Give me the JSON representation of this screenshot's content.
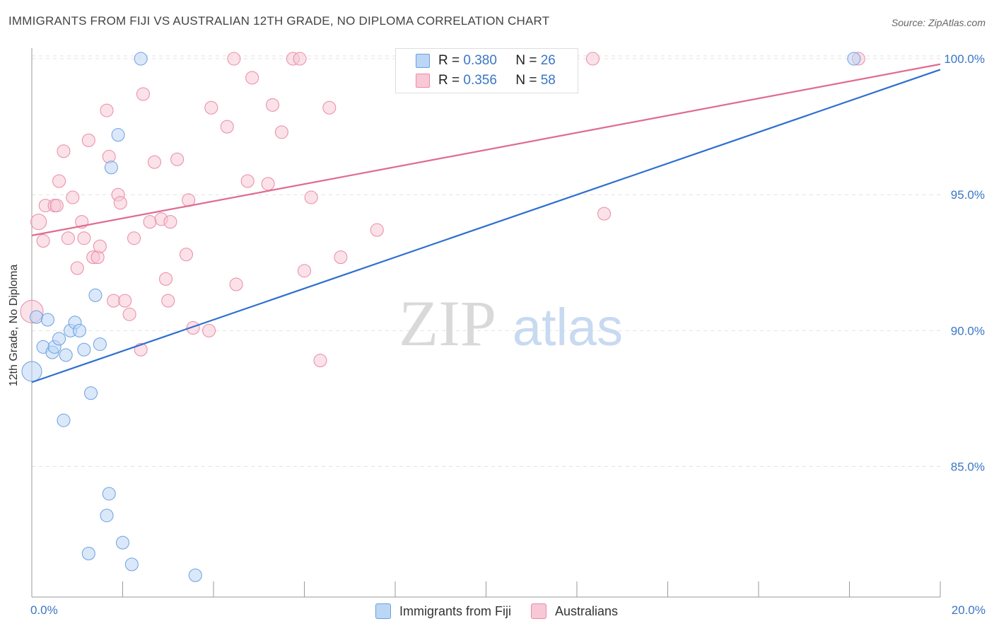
{
  "header": {
    "title": "IMMIGRANTS FROM FIJI VS AUSTRALIAN 12TH GRADE, NO DIPLOMA CORRELATION CHART",
    "source": "Source: ZipAtlas.com"
  },
  "watermark": {
    "zip": "ZIP",
    "atlas": "atlas"
  },
  "colors": {
    "fiji_fill": "#bcd6f5",
    "fiji_stroke": "#6aa0e0",
    "fiji_line": "#2e6fcf",
    "aus_fill": "#f8c8d6",
    "aus_stroke": "#e98aa6",
    "aus_line": "#e06a92",
    "tick_label": "#3a76c4",
    "grid": "#e2e2e2"
  },
  "legend_top": {
    "rows": [
      {
        "r_label": "R = ",
        "r_value": "0.380",
        "n_label": "N = ",
        "n_value": "26",
        "series": "fiji"
      },
      {
        "r_label": "R = ",
        "r_value": "0.356",
        "n_label": "N = ",
        "n_value": "58",
        "series": "aus"
      }
    ]
  },
  "legend_bottom": {
    "fiji": "Immigrants from Fiji",
    "aus": "Australians"
  },
  "chart_data": {
    "type": "scatter",
    "title": "IMMIGRANTS FROM FIJI VS AUSTRALIAN 12TH GRADE, NO DIPLOMA CORRELATION CHART",
    "xlabel": "",
    "ylabel": "12th Grade, No Diploma",
    "xlim": [
      0,
      20
    ],
    "ylim": [
      80.2,
      100.6
    ],
    "x_tick_labels": [
      "0.0%",
      "20.0%"
    ],
    "y_ticks": [
      85,
      90,
      95,
      100
    ],
    "y_tick_labels": [
      "85.0%",
      "90.0%",
      "95.0%",
      "100.0%"
    ],
    "grid": "horizontal dashed",
    "legend_placement": "bottom",
    "series": [
      {
        "name": "Immigrants from Fiji",
        "key": "fiji",
        "R": 0.38,
        "N": 26,
        "trend": {
          "x": [
            0,
            20
          ],
          "y": [
            88.1,
            99.6
          ]
        },
        "points": [
          [
            0.0,
            88.5,
            14
          ],
          [
            0.1,
            90.5,
            9
          ],
          [
            0.25,
            89.4,
            9
          ],
          [
            0.35,
            90.4,
            9
          ],
          [
            0.45,
            89.2,
            9
          ],
          [
            0.5,
            89.4,
            9
          ],
          [
            0.6,
            89.7,
            9
          ],
          [
            0.75,
            89.1,
            9
          ],
          [
            0.85,
            90.0,
            9
          ],
          [
            0.95,
            90.3,
            9
          ],
          [
            1.05,
            90.0,
            9
          ],
          [
            1.15,
            89.3,
            9
          ],
          [
            1.5,
            89.5,
            9
          ],
          [
            1.4,
            91.3,
            9
          ],
          [
            1.3,
            87.7,
            9
          ],
          [
            0.7,
            86.7,
            9
          ],
          [
            1.7,
            84.0,
            9
          ],
          [
            1.65,
            83.2,
            9
          ],
          [
            1.25,
            81.8,
            9
          ],
          [
            2.0,
            82.2,
            9
          ],
          [
            2.2,
            81.4,
            9
          ],
          [
            3.6,
            81.0,
            9
          ],
          [
            1.75,
            96.0,
            9
          ],
          [
            1.9,
            97.2,
            9
          ],
          [
            2.4,
            100.0,
            9
          ],
          [
            18.1,
            100.0,
            9
          ]
        ]
      },
      {
        "name": "Australians",
        "key": "aus",
        "R": 0.356,
        "N": 58,
        "trend": {
          "x": [
            0,
            20
          ],
          "y": [
            93.5,
            99.8
          ]
        },
        "points": [
          [
            0.0,
            90.7,
            16
          ],
          [
            0.15,
            94.0,
            11
          ],
          [
            0.25,
            93.3,
            9
          ],
          [
            0.3,
            94.6,
            9
          ],
          [
            0.5,
            94.6,
            9
          ],
          [
            0.6,
            95.5,
            9
          ],
          [
            0.7,
            96.6,
            9
          ],
          [
            0.8,
            93.4,
            9
          ],
          [
            0.9,
            94.9,
            9
          ],
          [
            1.0,
            92.3,
            9
          ],
          [
            1.1,
            94.0,
            9
          ],
          [
            1.15,
            93.4,
            9
          ],
          [
            1.25,
            97.0,
            9
          ],
          [
            1.35,
            92.7,
            9
          ],
          [
            1.45,
            92.7,
            9
          ],
          [
            1.5,
            93.1,
            9
          ],
          [
            1.65,
            98.1,
            9
          ],
          [
            1.7,
            96.4,
            9
          ],
          [
            1.8,
            91.1,
            9
          ],
          [
            1.9,
            95.0,
            9
          ],
          [
            1.95,
            94.7,
            9
          ],
          [
            2.05,
            91.1,
            9
          ],
          [
            2.15,
            90.6,
            9
          ],
          [
            2.25,
            93.4,
            9
          ],
          [
            2.4,
            89.3,
            9
          ],
          [
            2.45,
            98.7,
            9
          ],
          [
            2.6,
            94.0,
            9
          ],
          [
            2.7,
            96.2,
            9
          ],
          [
            2.85,
            94.1,
            9
          ],
          [
            2.95,
            91.9,
            9
          ],
          [
            3.0,
            91.1,
            9
          ],
          [
            3.05,
            94.0,
            9
          ],
          [
            3.2,
            96.3,
            9
          ],
          [
            3.4,
            92.8,
            9
          ],
          [
            3.45,
            94.8,
            9
          ],
          [
            3.55,
            90.1,
            9
          ],
          [
            3.9,
            90.0,
            9
          ],
          [
            3.95,
            98.2,
            9
          ],
          [
            4.3,
            97.5,
            9
          ],
          [
            4.45,
            100.0,
            9
          ],
          [
            4.5,
            91.7,
            9
          ],
          [
            4.75,
            95.5,
            9
          ],
          [
            4.85,
            99.3,
            9
          ],
          [
            5.2,
            95.4,
            9
          ],
          [
            5.3,
            98.3,
            9
          ],
          [
            5.5,
            97.3,
            9
          ],
          [
            5.75,
            100.0,
            9
          ],
          [
            5.9,
            100.0,
            9
          ],
          [
            6.0,
            92.2,
            9
          ],
          [
            6.15,
            94.9,
            9
          ],
          [
            6.35,
            88.9,
            9
          ],
          [
            6.55,
            98.2,
            9
          ],
          [
            6.8,
            92.7,
            9
          ],
          [
            7.6,
            93.7,
            9
          ],
          [
            12.35,
            100.0,
            9
          ],
          [
            12.6,
            94.3,
            9
          ],
          [
            18.2,
            100.0,
            9
          ],
          [
            0.55,
            94.6,
            9
          ]
        ]
      }
    ]
  }
}
